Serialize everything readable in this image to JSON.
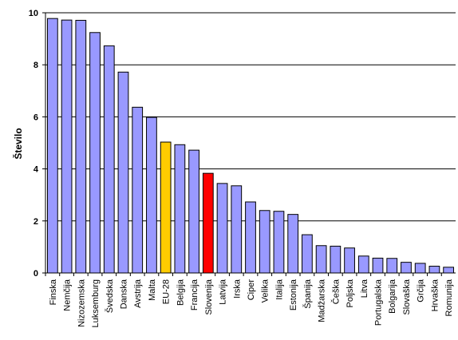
{
  "chart_data": {
    "type": "bar",
    "title": "",
    "xlabel": "",
    "ylabel": "Število",
    "ylim": [
      0,
      10
    ],
    "yticks": [
      "0",
      "2",
      "4",
      "6",
      "8",
      "10"
    ],
    "grid": true,
    "legend": "none",
    "categories": [
      "Finska",
      "Nemčija",
      "Nizozemska",
      "Luksemburg",
      "Švedska",
      "Danska",
      "Avstrija",
      "Malta",
      "EU-28",
      "Belgija",
      "Francija",
      "Slovenija",
      "Latvija",
      "Irska",
      "Ciper",
      "Velika",
      "Italija",
      "Estonija",
      "Španija",
      "Madžarska",
      "Češka",
      "Poljska",
      "Litva",
      "Portugalska",
      "Bolgarija",
      "Slovaška",
      "Grčija",
      "Hrvaška",
      "Romunija"
    ],
    "values": [
      9.78,
      9.72,
      9.71,
      9.24,
      8.73,
      7.72,
      6.37,
      5.98,
      5.03,
      4.93,
      4.72,
      3.83,
      3.44,
      3.35,
      2.73,
      2.4,
      2.37,
      2.25,
      1.47,
      1.05,
      1.03,
      0.96,
      0.65,
      0.57,
      0.56,
      0.41,
      0.37,
      0.26,
      0.22
    ],
    "colors": {
      "default": "#9999ff",
      "EU-28": "#ffcc00",
      "Slovenija": "#ff0000",
      "grid": "#000000"
    }
  }
}
